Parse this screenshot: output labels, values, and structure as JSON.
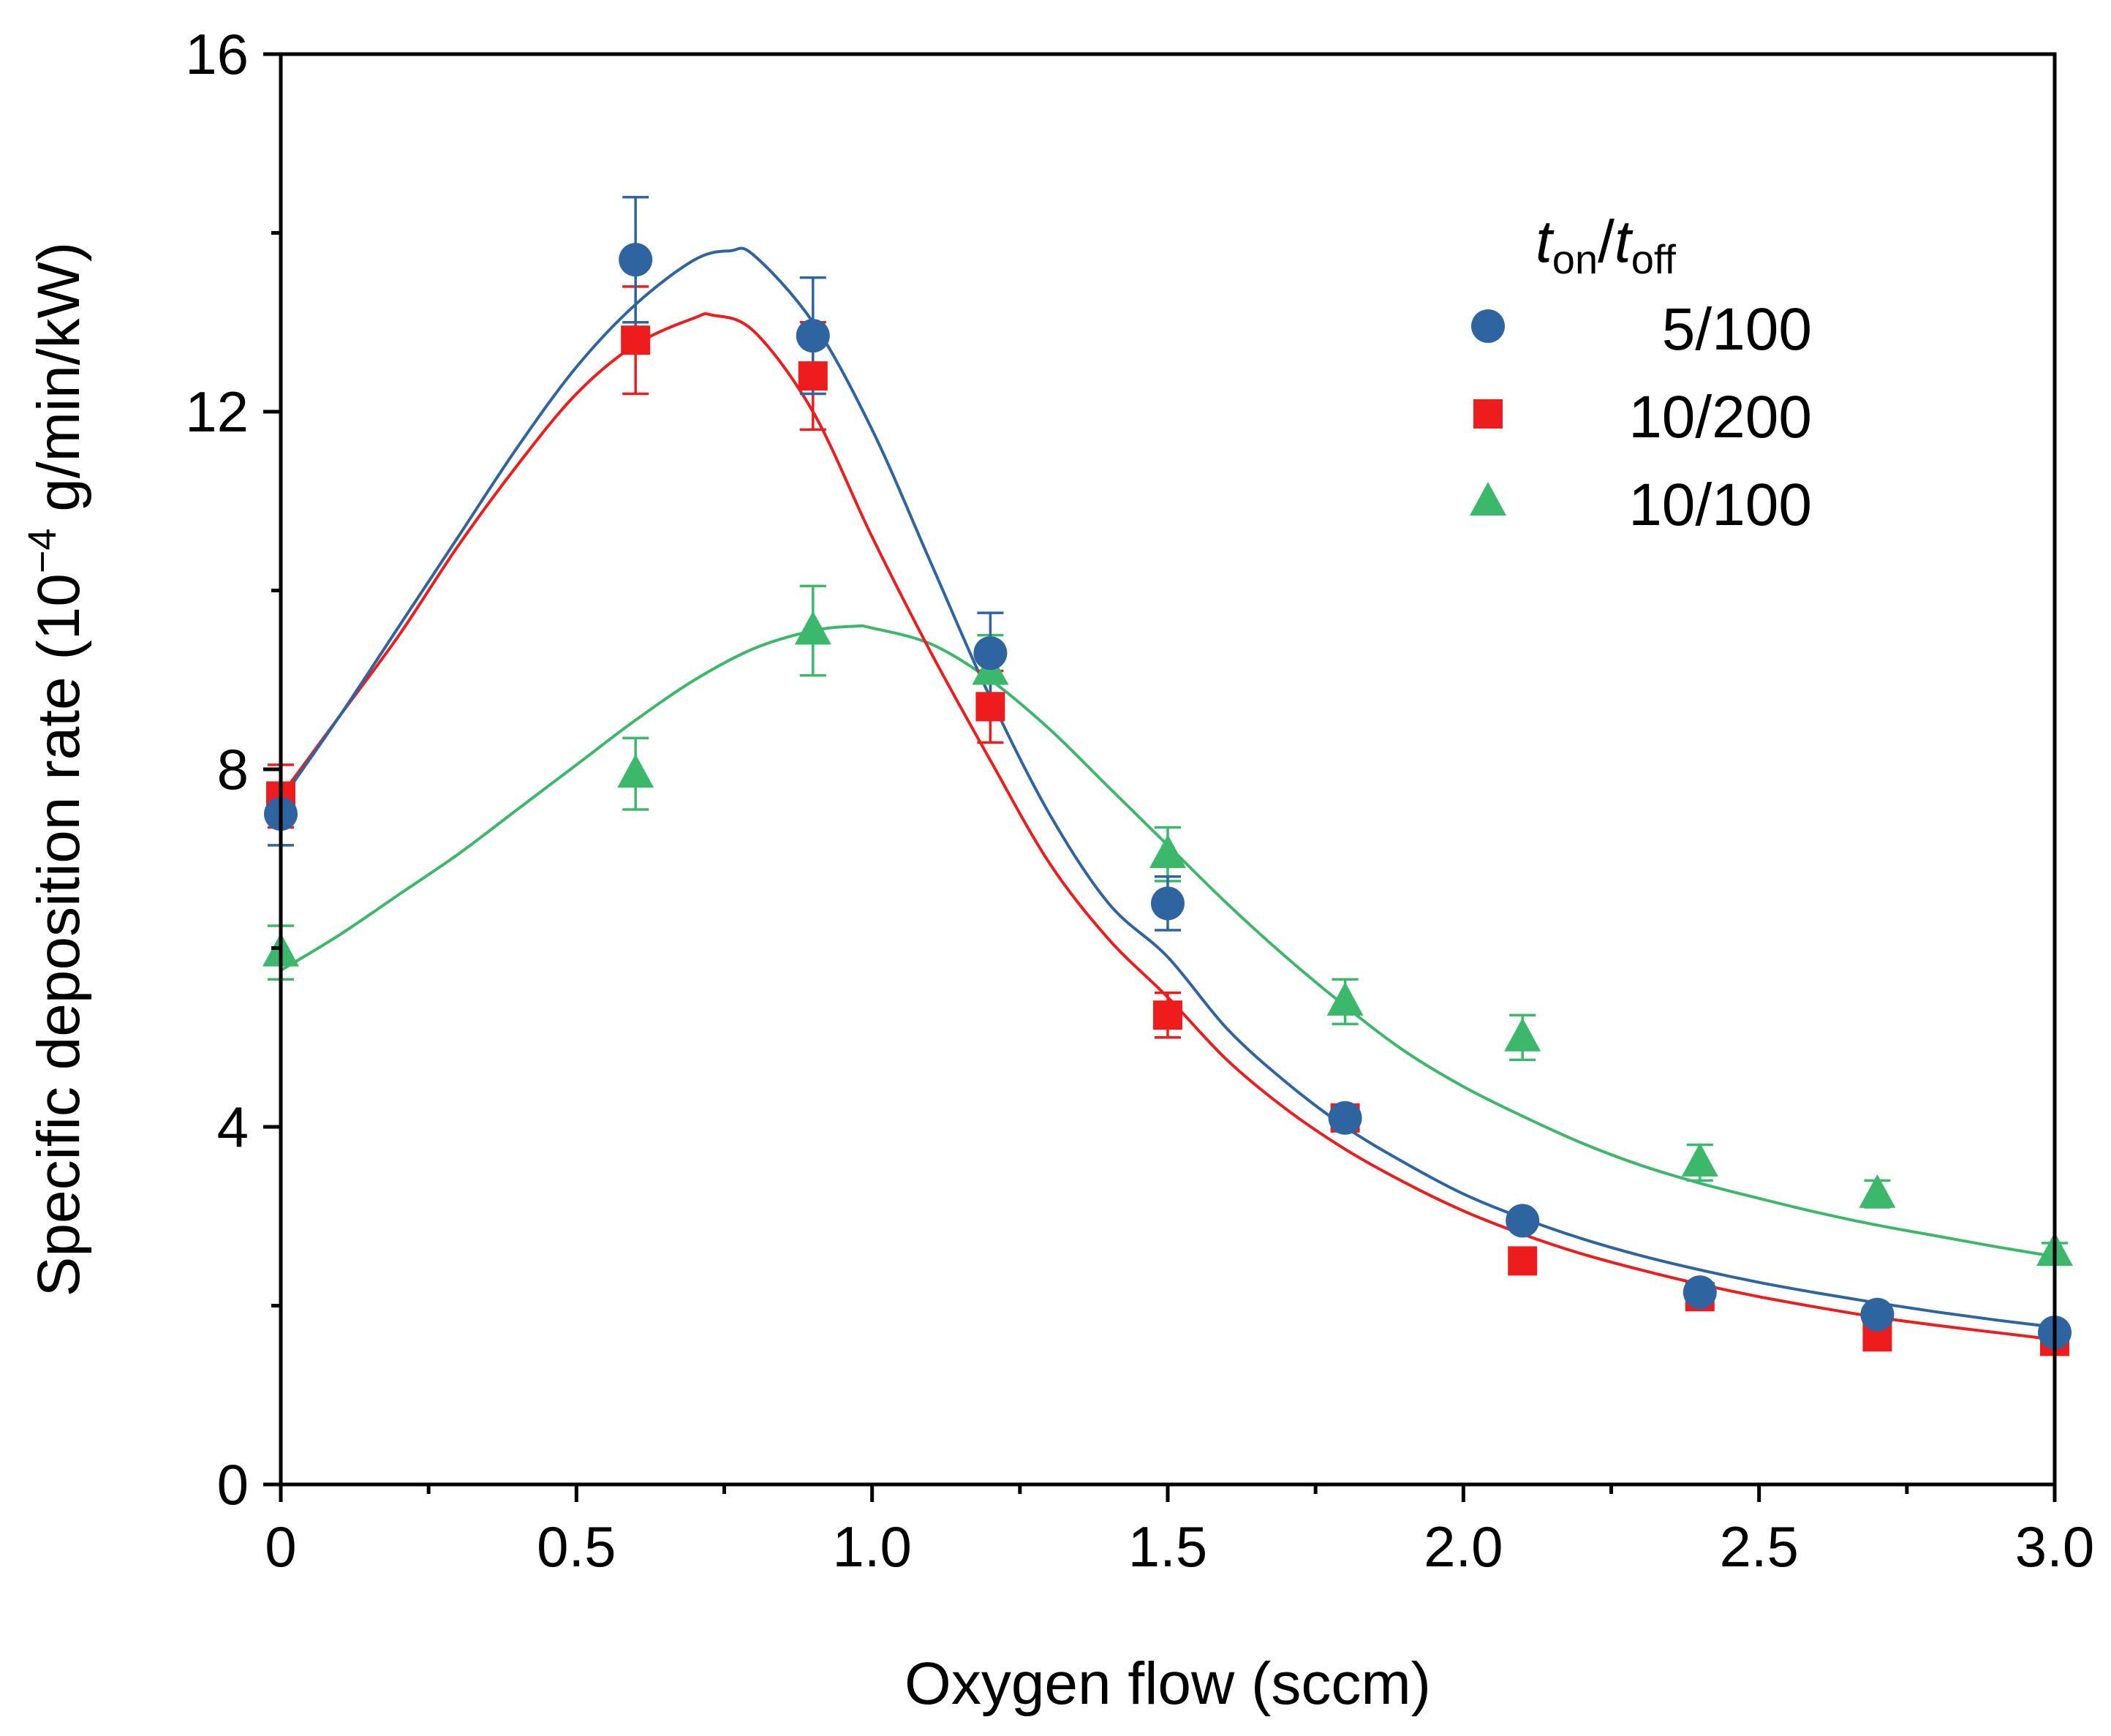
{
  "chart_data": {
    "type": "scatter",
    "title": "",
    "xlabel": "Oxygen flow (sccm)",
    "ylabel": {
      "prefix": "Specific deposition rate (10",
      "exponent": "−4",
      "suffix": " g/min/kW)"
    },
    "xlim": [
      0,
      3.0
    ],
    "ylim": [
      0,
      16
    ],
    "x_ticks": [
      "0",
      "0.5",
      "1.0",
      "1.5",
      "2.0",
      "2.5",
      "3.0"
    ],
    "x_tick_values": [
      0,
      0.5,
      1.0,
      1.5,
      2.0,
      2.5,
      3.0
    ],
    "x_minor_ticks": [
      0.25,
      0.75,
      1.25,
      1.75,
      2.25,
      2.75
    ],
    "y_ticks": [
      "0",
      "4",
      "8",
      "12",
      "16"
    ],
    "y_tick_values": [
      0,
      4,
      8,
      12,
      16
    ],
    "y_minor_ticks": [
      2,
      6,
      10,
      14
    ],
    "legend": {
      "title_t1": "t",
      "title_sub1": "on",
      "title_slash": "/",
      "title_t2": "t",
      "title_sub2": "off",
      "placement": "top-right"
    },
    "series": [
      {
        "name": "5/100",
        "marker": "circle",
        "color": "#2E64A0",
        "x": [
          0,
          0.6,
          0.9,
          1.2,
          1.5,
          1.8,
          2.1,
          2.4,
          2.7,
          3.0
        ],
        "y": [
          7.5,
          13.7,
          12.85,
          9.3,
          6.5,
          4.1,
          2.95,
          2.15,
          1.9,
          1.7
        ],
        "err": [
          0.35,
          0.7,
          0.65,
          0.45,
          0.3,
          0.0,
          0.0,
          0.0,
          0.0,
          0.0
        ],
        "fit": {
          "x": [
            0,
            0.1,
            0.2,
            0.3,
            0.4,
            0.5,
            0.6,
            0.7,
            0.76,
            0.8,
            0.9,
            1.0,
            1.1,
            1.2,
            1.3,
            1.4,
            1.5,
            1.6,
            1.7,
            1.8,
            1.9,
            2.0,
            2.1,
            2.2,
            2.3,
            2.4,
            2.5,
            2.6,
            2.7,
            2.8,
            2.9,
            3.0
          ],
          "y": [
            7.65,
            8.6,
            9.6,
            10.6,
            11.6,
            12.5,
            13.2,
            13.7,
            13.8,
            13.75,
            13.0,
            11.8,
            10.3,
            8.8,
            7.5,
            6.5,
            5.9,
            5.1,
            4.5,
            4.0,
            3.6,
            3.25,
            2.98,
            2.75,
            2.56,
            2.4,
            2.26,
            2.14,
            2.03,
            1.93,
            1.84,
            1.76
          ]
        }
      },
      {
        "name": "10/200",
        "marker": "square",
        "color": "#EE1C1C",
        "x": [
          0,
          0.6,
          0.9,
          1.2,
          1.5,
          1.8,
          2.1,
          2.4,
          2.7,
          3.0
        ],
        "y": [
          7.7,
          12.8,
          12.4,
          8.7,
          5.25,
          4.1,
          2.5,
          2.1,
          1.65,
          1.6
        ],
        "err": [
          0.35,
          0.6,
          0.6,
          0.4,
          0.25,
          0.0,
          0.0,
          0.0,
          0.0,
          0.0
        ],
        "fit": {
          "x": [
            0,
            0.1,
            0.2,
            0.3,
            0.4,
            0.5,
            0.6,
            0.7,
            0.73,
            0.8,
            0.9,
            1.0,
            1.1,
            1.2,
            1.3,
            1.4,
            1.5,
            1.6,
            1.7,
            1.8,
            1.9,
            2.0,
            2.1,
            2.2,
            2.3,
            2.4,
            2.5,
            2.6,
            2.7,
            2.8,
            2.9,
            3.0
          ],
          "y": [
            7.7,
            8.6,
            9.5,
            10.5,
            11.4,
            12.2,
            12.75,
            13.05,
            13.08,
            12.9,
            12.0,
            10.6,
            9.3,
            8.1,
            6.95,
            6.1,
            5.45,
            4.75,
            4.2,
            3.75,
            3.38,
            3.06,
            2.8,
            2.58,
            2.4,
            2.24,
            2.1,
            1.98,
            1.87,
            1.78,
            1.7,
            1.62
          ]
        }
      },
      {
        "name": "10/100",
        "marker": "triangle",
        "color": "#3CB86B",
        "x": [
          0,
          0.6,
          0.9,
          1.2,
          1.5,
          1.8,
          2.1,
          2.4,
          2.7,
          3.0
        ],
        "y": [
          5.95,
          7.95,
          9.55,
          9.1,
          7.05,
          5.4,
          5.0,
          3.6,
          3.25,
          2.6
        ],
        "err": [
          0.3,
          0.4,
          0.5,
          0.4,
          0.3,
          0.25,
          0.25,
          0.2,
          0.15,
          0.1
        ],
        "fit": {
          "x": [
            0,
            0.1,
            0.2,
            0.3,
            0.4,
            0.5,
            0.6,
            0.7,
            0.8,
            0.9,
            0.97,
            1.0,
            1.1,
            1.2,
            1.3,
            1.4,
            1.5,
            1.6,
            1.7,
            1.8,
            1.9,
            2.0,
            2.1,
            2.2,
            2.3,
            2.4,
            2.5,
            2.6,
            2.7,
            2.8,
            2.9,
            3.0
          ],
          "y": [
            5.75,
            6.15,
            6.6,
            7.05,
            7.55,
            8.05,
            8.55,
            9.0,
            9.35,
            9.55,
            9.6,
            9.58,
            9.4,
            9.0,
            8.45,
            7.8,
            7.15,
            6.5,
            5.9,
            5.35,
            4.85,
            4.45,
            4.12,
            3.82,
            3.57,
            3.37,
            3.2,
            3.04,
            2.9,
            2.78,
            2.66,
            2.55
          ]
        }
      }
    ]
  }
}
